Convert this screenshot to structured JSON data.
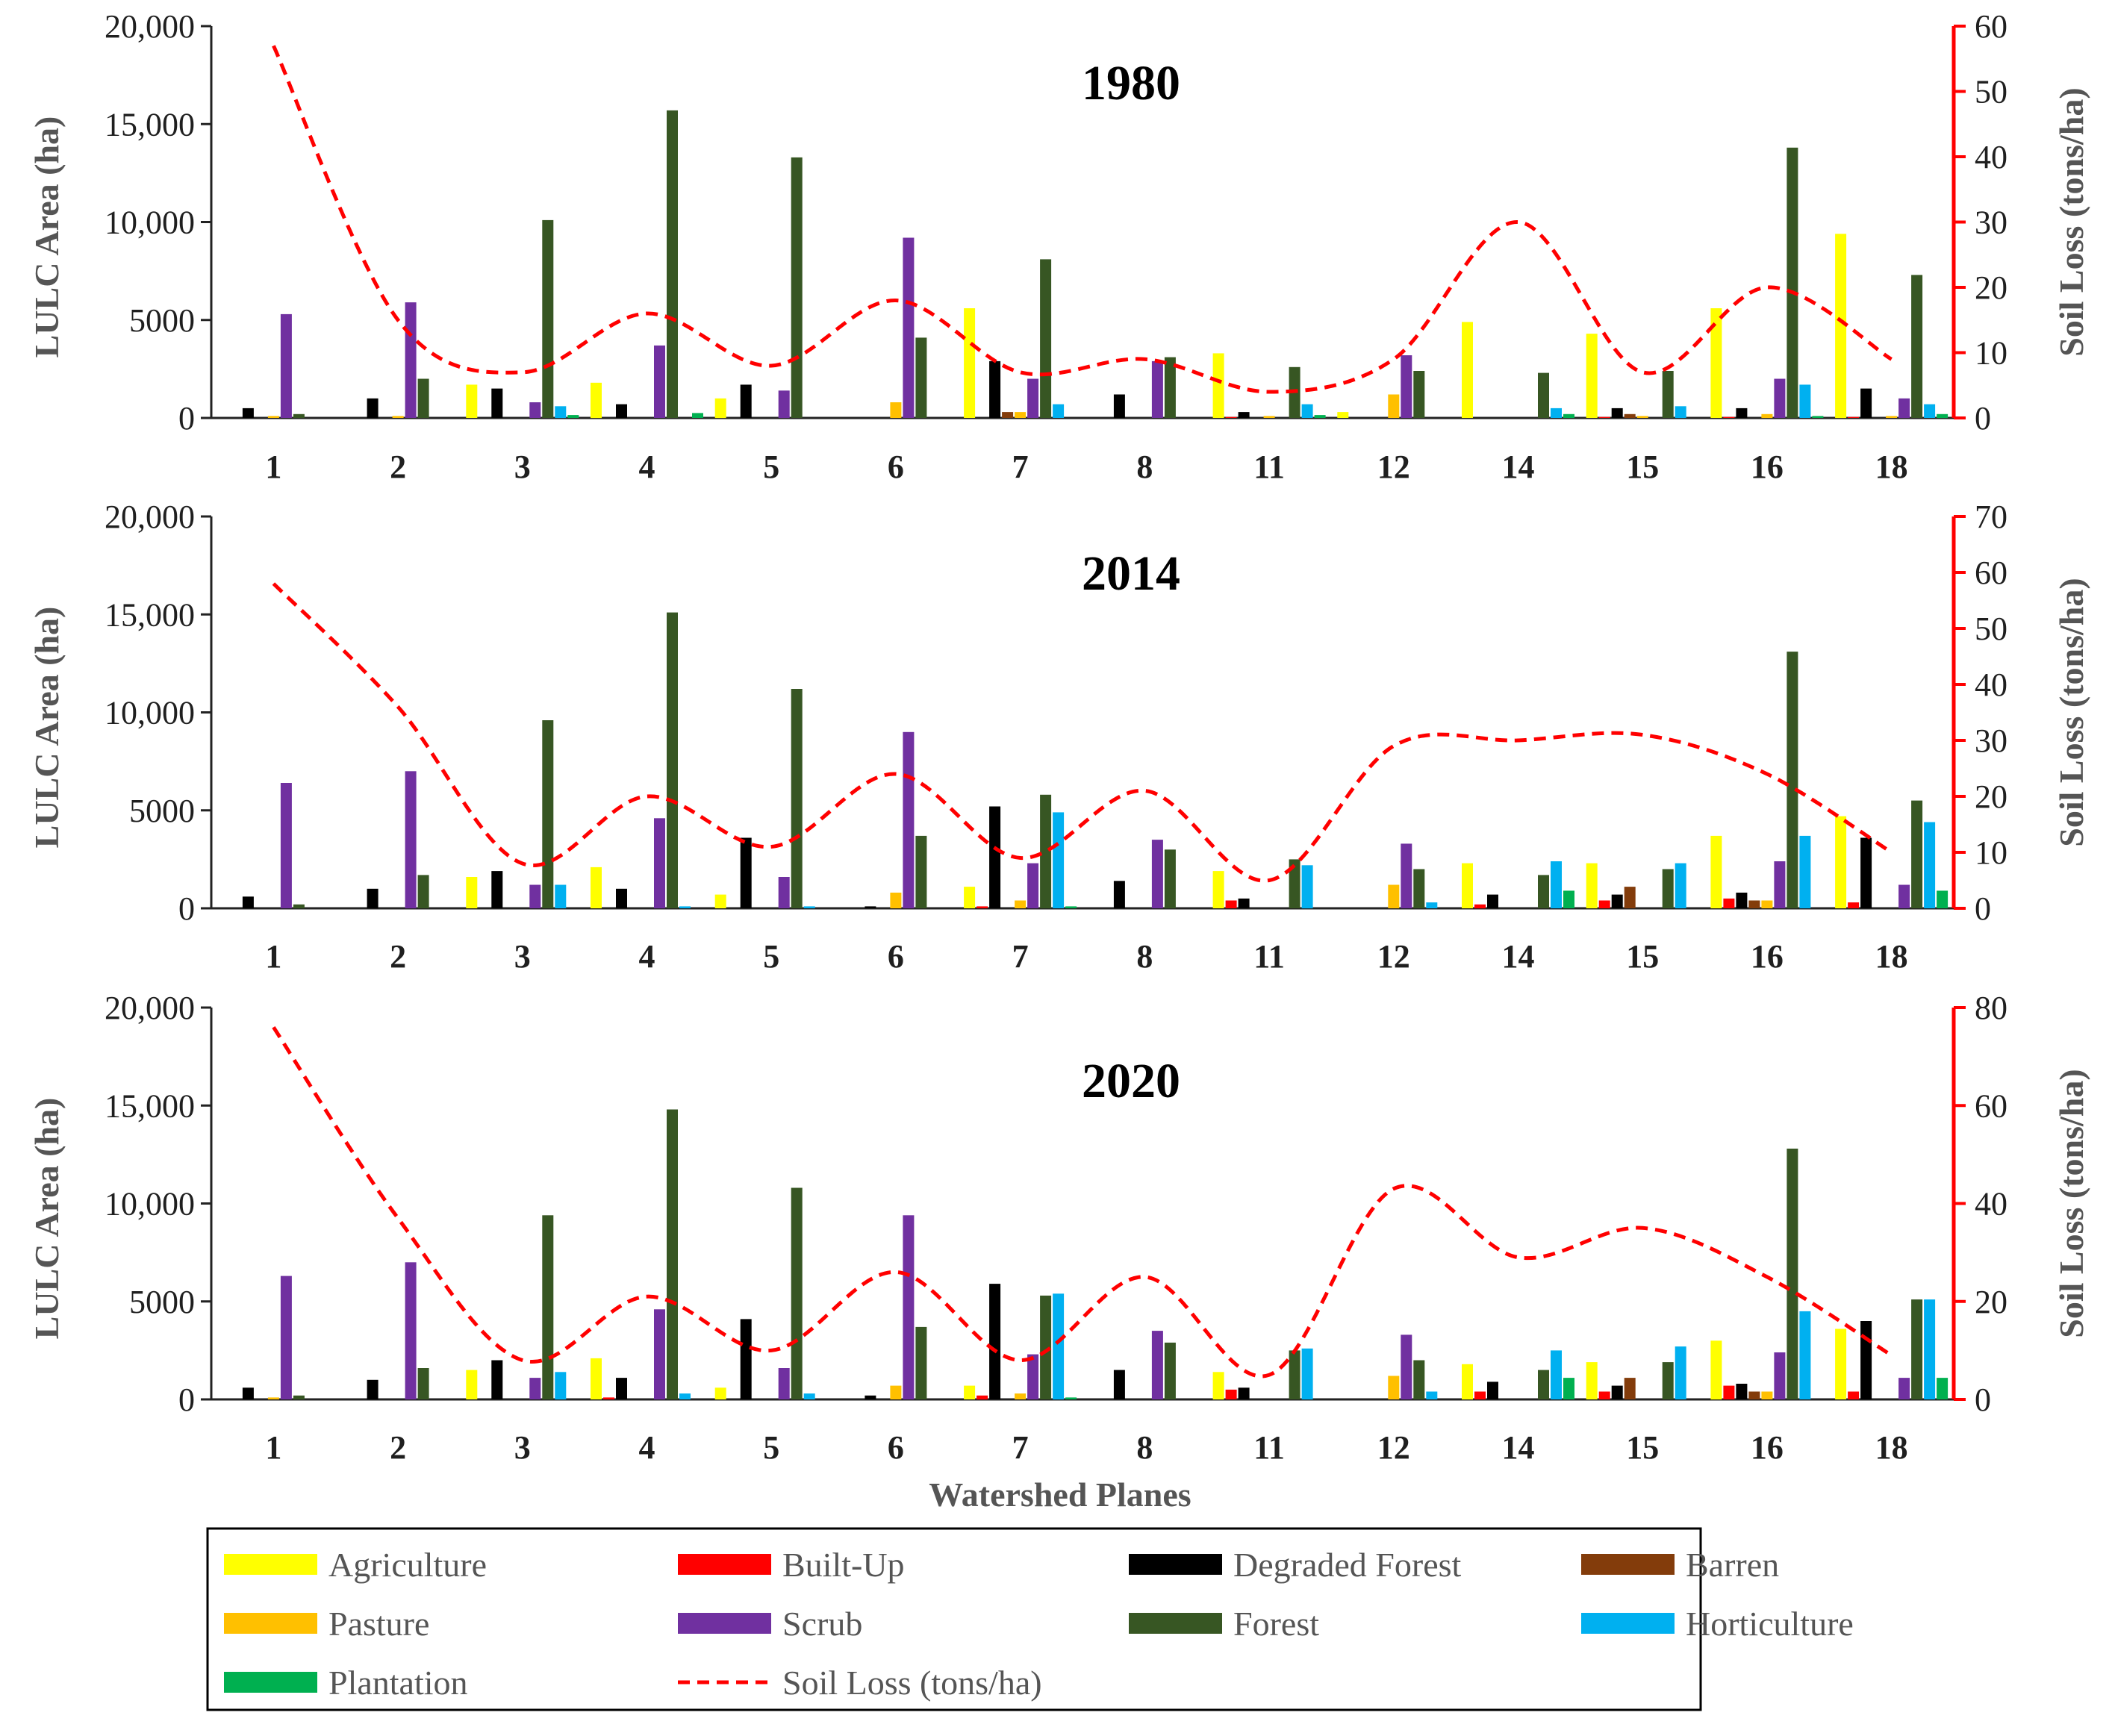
{
  "chart_data": {
    "type": "bar",
    "xlabel": "Watershed Planes",
    "ylabel": "LULC Area (ha)",
    "y2label": "Soil Loss (tons/ha)",
    "categories": [
      "1",
      "2",
      "3",
      "4",
      "5",
      "6",
      "7",
      "8",
      "11",
      "12",
      "14",
      "15",
      "16",
      "18"
    ],
    "legend_placement": "bottom",
    "series_meta": [
      {
        "name": "Agriculture",
        "color": "#ffff00"
      },
      {
        "name": "Built-Up",
        "color": "#ff0000"
      },
      {
        "name": "Degraded Forest",
        "color": "#000000"
      },
      {
        "name": "Barren",
        "color": "#833c0b"
      },
      {
        "name": "Pasture",
        "color": "#ffc000"
      },
      {
        "name": "Scrub",
        "color": "#7030a0"
      },
      {
        "name": "Forest",
        "color": "#375623"
      },
      {
        "name": "Horticulture",
        "color": "#00b0f0"
      },
      {
        "name": "Plantation",
        "color": "#00b050"
      }
    ],
    "line_series": {
      "name": "Soil Loss (tons/ha)",
      "color": "#ff0000"
    },
    "panels": [
      {
        "title": "1980",
        "ylim": [
          0,
          20000
        ],
        "yticks": [
          0,
          5000,
          10000,
          15000,
          20000
        ],
        "ytick_labels": [
          "0",
          "5000",
          "10,000",
          "15,000",
          "20,000"
        ],
        "y2lim": [
          0,
          60
        ],
        "y2ticks": [
          0,
          10,
          20,
          30,
          40,
          50,
          60
        ],
        "series": [
          {
            "name": "Agriculture",
            "values": [
              0,
              0,
              1700,
              1800,
              1000,
              0,
              5600,
              0,
              3300,
              300,
              4900,
              4300,
              5600,
              9400
            ]
          },
          {
            "name": "Built-Up",
            "values": [
              0,
              0,
              0,
              0,
              0,
              0,
              0,
              0,
              50,
              0,
              0,
              50,
              50,
              50
            ]
          },
          {
            "name": "Degraded Forest",
            "values": [
              500,
              1000,
              1500,
              700,
              1700,
              0,
              2900,
              1200,
              300,
              0,
              0,
              500,
              500,
              1500
            ]
          },
          {
            "name": "Barren",
            "values": [
              0,
              0,
              0,
              0,
              0,
              0,
              300,
              0,
              0,
              0,
              0,
              200,
              0,
              0
            ]
          },
          {
            "name": "Pasture",
            "values": [
              100,
              100,
              0,
              0,
              0,
              800,
              300,
              0,
              100,
              1200,
              0,
              100,
              200,
              100
            ]
          },
          {
            "name": "Scrub",
            "values": [
              5300,
              5900,
              800,
              3700,
              1400,
              9200,
              2000,
              2900,
              0,
              3200,
              0,
              0,
              2000,
              1000
            ]
          },
          {
            "name": "Forest",
            "values": [
              200,
              2000,
              10100,
              15700,
              13300,
              4100,
              8100,
              3100,
              2600,
              2400,
              2300,
              2400,
              13800,
              7300
            ]
          },
          {
            "name": "Horticulture",
            "values": [
              0,
              0,
              600,
              0,
              0,
              0,
              700,
              0,
              700,
              0,
              500,
              600,
              1700,
              700
            ]
          },
          {
            "name": "Plantation",
            "values": [
              0,
              0,
              150,
              250,
              0,
              0,
              0,
              0,
              150,
              0,
              200,
              0,
              100,
              200
            ]
          }
        ],
        "soil_loss": [
          57,
          15,
          7,
          16,
          8,
          18,
          7,
          9,
          4,
          9,
          30,
          7,
          20,
          9
        ]
      },
      {
        "title": "2014",
        "ylim": [
          0,
          20000
        ],
        "yticks": [
          0,
          5000,
          10000,
          15000,
          20000
        ],
        "ytick_labels": [
          "0",
          "5000",
          "10,000",
          "15,000",
          "20,000"
        ],
        "y2lim": [
          0,
          70
        ],
        "y2ticks": [
          0,
          10,
          20,
          30,
          40,
          50,
          60,
          70
        ],
        "series": [
          {
            "name": "Agriculture",
            "values": [
              0,
              0,
              1600,
              2100,
              700,
              0,
              1100,
              0,
              1900,
              0,
              2300,
              2300,
              3700,
              4700
            ]
          },
          {
            "name": "Built-Up",
            "values": [
              0,
              0,
              0,
              0,
              0,
              0,
              100,
              0,
              400,
              0,
              200,
              400,
              500,
              300
            ]
          },
          {
            "name": "Degraded Forest",
            "values": [
              600,
              1000,
              1900,
              1000,
              3600,
              100,
              5200,
              1400,
              500,
              0,
              700,
              700,
              800,
              3600
            ]
          },
          {
            "name": "Barren",
            "values": [
              0,
              0,
              0,
              0,
              0,
              0,
              0,
              0,
              0,
              0,
              0,
              1100,
              400,
              0
            ]
          },
          {
            "name": "Pasture",
            "values": [
              0,
              0,
              0,
              0,
              0,
              800,
              400,
              0,
              0,
              1200,
              0,
              0,
              400,
              0
            ]
          },
          {
            "name": "Scrub",
            "values": [
              6400,
              7000,
              1200,
              4600,
              1600,
              9000,
              2300,
              3500,
              0,
              3300,
              0,
              0,
              2400,
              1200
            ]
          },
          {
            "name": "Forest",
            "values": [
              200,
              1700,
              9600,
              15100,
              11200,
              3700,
              5800,
              3000,
              2500,
              2000,
              1700,
              2000,
              13100,
              5500
            ]
          },
          {
            "name": "Horticulture",
            "values": [
              0,
              0,
              1200,
              100,
              100,
              0,
              4900,
              0,
              2200,
              300,
              2400,
              2300,
              3700,
              4400
            ]
          },
          {
            "name": "Plantation",
            "values": [
              0,
              0,
              0,
              0,
              0,
              0,
              100,
              0,
              0,
              0,
              900,
              0,
              0,
              900
            ]
          }
        ],
        "soil_loss": [
          58,
          36,
          8,
          20,
          11,
          24,
          9,
          21,
          5,
          29,
          30,
          31,
          24,
          10
        ]
      },
      {
        "title": "2020",
        "ylim": [
          0,
          20000
        ],
        "yticks": [
          0,
          5000,
          10000,
          15000,
          20000
        ],
        "ytick_labels": [
          "0",
          "5000",
          "10,000",
          "15,000",
          "20,000"
        ],
        "y2lim": [
          0,
          80
        ],
        "y2ticks": [
          0,
          20,
          40,
          60,
          80
        ],
        "series": [
          {
            "name": "Agriculture",
            "values": [
              0,
              0,
              1500,
              2100,
              600,
              0,
              700,
              0,
              1400,
              0,
              1800,
              1900,
              3000,
              3600
            ]
          },
          {
            "name": "Built-Up",
            "values": [
              0,
              0,
              0,
              100,
              0,
              0,
              200,
              0,
              500,
              0,
              400,
              400,
              700,
              400
            ]
          },
          {
            "name": "Degraded Forest",
            "values": [
              600,
              1000,
              2000,
              1100,
              4100,
              200,
              5900,
              1500,
              600,
              0,
              900,
              700,
              800,
              4000
            ]
          },
          {
            "name": "Barren",
            "values": [
              0,
              0,
              0,
              0,
              0,
              0,
              0,
              0,
              0,
              0,
              0,
              1100,
              400,
              0
            ]
          },
          {
            "name": "Pasture",
            "values": [
              100,
              0,
              0,
              0,
              0,
              700,
              300,
              0,
              0,
              1200,
              0,
              0,
              400,
              0
            ]
          },
          {
            "name": "Scrub",
            "values": [
              6300,
              7000,
              1100,
              4600,
              1600,
              9400,
              2300,
              3500,
              0,
              3300,
              0,
              0,
              2400,
              1100
            ]
          },
          {
            "name": "Forest",
            "values": [
              200,
              1600,
              9400,
              14800,
              10800,
              3700,
              5300,
              2900,
              2500,
              2000,
              1500,
              1900,
              12800,
              5100
            ]
          },
          {
            "name": "Horticulture",
            "values": [
              0,
              0,
              1400,
              300,
              300,
              0,
              5400,
              0,
              2600,
              400,
              2500,
              2700,
              4500,
              5100
            ]
          },
          {
            "name": "Plantation",
            "values": [
              0,
              0,
              0,
              0,
              0,
              0,
              100,
              0,
              0,
              0,
              1100,
              0,
              0,
              1100
            ]
          }
        ],
        "soil_loss": [
          76,
          37,
          8,
          21,
          10,
          26,
          8,
          25,
          5,
          43,
          29,
          35,
          25,
          9
        ]
      }
    ]
  }
}
